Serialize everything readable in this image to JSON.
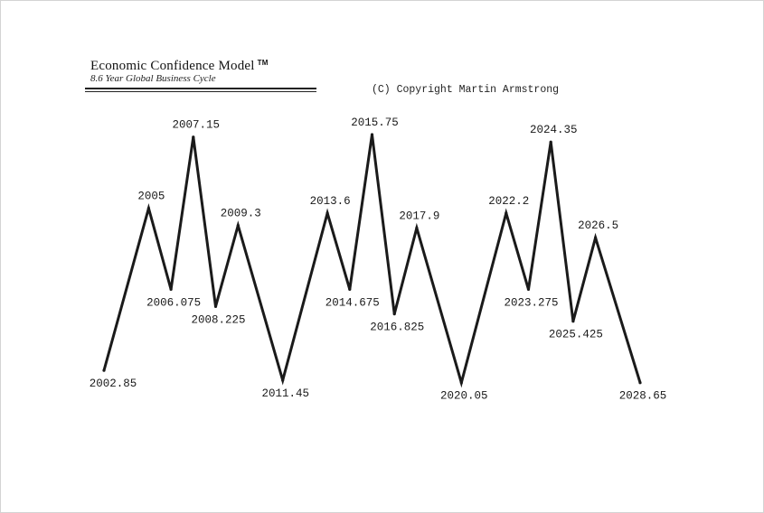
{
  "header": {
    "title": "Economic Confidence Model",
    "trademark": "TM",
    "subtitle": "8.6 Year Global Business Cycle",
    "copyright": "(C) Copyright Martin Armstrong"
  },
  "chart_data": {
    "type": "line",
    "title": "Economic Confidence Model",
    "subtitle": "8.6 Year Global Business Cycle",
    "xlabel": "",
    "ylabel": "",
    "grid": false,
    "legend": "none",
    "line_color": "#1a1a1a",
    "points": [
      {
        "label": "2002.85",
        "x": 2002.85,
        "level": 0.04
      },
      {
        "label": "2005",
        "x": 2005,
        "level": 0.7
      },
      {
        "label": "2006.075",
        "x": 2006.075,
        "level": 0.37
      },
      {
        "label": "2007.15",
        "x": 2007.15,
        "level": 0.99
      },
      {
        "label": "2008.225",
        "x": 2008.225,
        "level": 0.3
      },
      {
        "label": "2009.3",
        "x": 2009.3,
        "level": 0.63
      },
      {
        "label": "2011.45",
        "x": 2011.45,
        "level": 0.0
      },
      {
        "label": "2013.6",
        "x": 2013.6,
        "level": 0.68
      },
      {
        "label": "2014.675",
        "x": 2014.675,
        "level": 0.37
      },
      {
        "label": "2015.75",
        "x": 2015.75,
        "level": 1.0
      },
      {
        "label": "2016.825",
        "x": 2016.825,
        "level": 0.27
      },
      {
        "label": "2017.9",
        "x": 2017.9,
        "level": 0.62
      },
      {
        "label": "2020.05",
        "x": 2020.05,
        "level": -0.01
      },
      {
        "label": "2022.2",
        "x": 2022.2,
        "level": 0.68
      },
      {
        "label": "2023.275",
        "x": 2023.275,
        "level": 0.37
      },
      {
        "label": "2024.35",
        "x": 2024.35,
        "level": 0.97
      },
      {
        "label": "2025.425",
        "x": 2025.425,
        "level": 0.24
      },
      {
        "label": "2026.5",
        "x": 2026.5,
        "level": 0.58
      },
      {
        "label": "2028.65",
        "x": 2028.65,
        "level": -0.01
      }
    ]
  }
}
